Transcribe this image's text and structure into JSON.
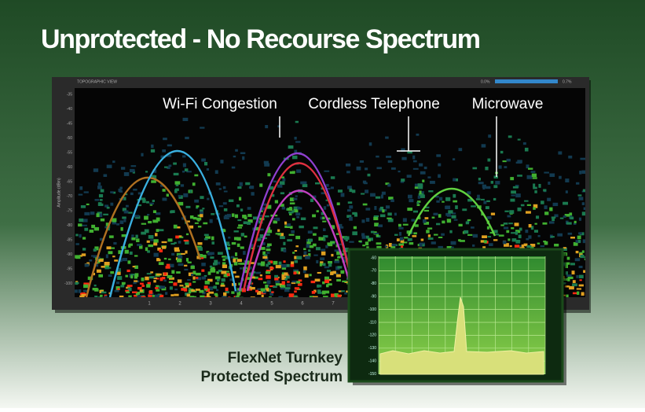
{
  "header": {
    "title": "Unprotected - No Recourse Spectrum"
  },
  "spectrum": {
    "view_label": "TOPOGRAPHIC VIEW",
    "scale_min": "0.0%",
    "scale_max": "0.7%",
    "y_axis_label": "Amplitude (dBm)",
    "y_ticks": [
      "-35",
      "-40",
      "-45",
      "-50",
      "-55",
      "-60",
      "-65",
      "-70",
      "-75",
      "-80",
      "-85",
      "-90",
      "-95",
      "-100"
    ],
    "x_ticks": [
      "1",
      "2",
      "3",
      "4",
      "5",
      "6",
      "7"
    ],
    "annotations": [
      "Wi-Fi Congestion",
      "Cordless Telephone",
      "Microwave"
    ]
  },
  "inset": {
    "y_ticks": [
      "-60",
      "-70",
      "-80",
      "-90",
      "-100",
      "-110",
      "-120",
      "-130",
      "-140",
      "-150"
    ]
  },
  "caption": {
    "line1": "FlexNet Turnkey",
    "line2": "Protected Spectrum"
  }
}
